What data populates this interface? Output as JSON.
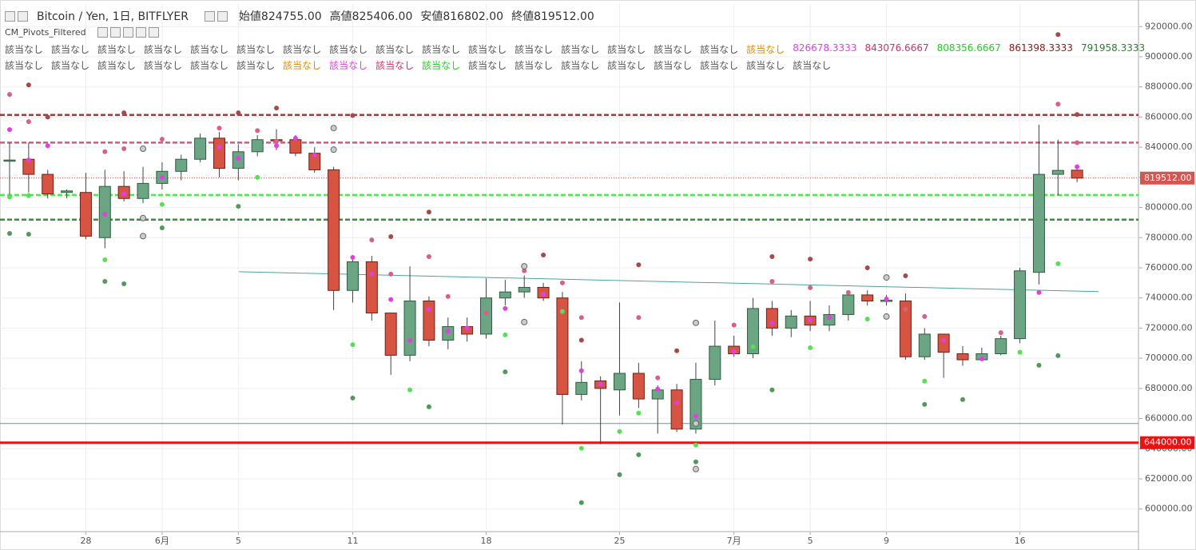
{
  "header": {
    "symbol": "Bitcoin / Yen, 1日, BITFLYER",
    "ohlc": [
      {
        "label": "始値",
        "value": "824755.00"
      },
      {
        "label": "高値",
        "value": "825406.00"
      },
      {
        "label": "安値",
        "value": "816802.00"
      },
      {
        "label": "終値",
        "value": "819512.00"
      }
    ]
  },
  "indicator": {
    "name": "CM_Pivots_Filtered"
  },
  "status": {
    "rows": [
      [
        {
          "text": "該当なし",
          "color": "#555555"
        },
        {
          "text": "該当なし",
          "color": "#555555"
        },
        {
          "text": "該当なし",
          "color": "#555555"
        },
        {
          "text": "該当なし",
          "color": "#555555"
        },
        {
          "text": "該当なし",
          "color": "#555555"
        },
        {
          "text": "該当なし",
          "color": "#555555"
        },
        {
          "text": "該当なし",
          "color": "#555555"
        },
        {
          "text": "該当なし",
          "color": "#555555"
        },
        {
          "text": "該当なし",
          "color": "#555555"
        },
        {
          "text": "該当なし",
          "color": "#555555"
        },
        {
          "text": "該当なし",
          "color": "#555555"
        },
        {
          "text": "該当なし",
          "color": "#555555"
        },
        {
          "text": "該当なし",
          "color": "#555555"
        },
        {
          "text": "該当なし",
          "color": "#555555"
        },
        {
          "text": "該当なし",
          "color": "#555555"
        },
        {
          "text": "該当なし",
          "color": "#555555"
        },
        {
          "text": "該当なし",
          "color": "#e08a00"
        },
        {
          "text": "826678.3333",
          "color": "#e040e0"
        },
        {
          "text": "843076.6667",
          "color": "#d0306a"
        },
        {
          "text": "808356.6667",
          "color": "#22cc22"
        },
        {
          "text": "861398.3333",
          "color": "#8b1a1a"
        },
        {
          "text": "791958.3333",
          "color": "#2e7d32"
        }
      ],
      [
        {
          "text": "該当なし",
          "color": "#555555"
        },
        {
          "text": "該当なし",
          "color": "#555555"
        },
        {
          "text": "該当なし",
          "color": "#555555"
        },
        {
          "text": "該当なし",
          "color": "#555555"
        },
        {
          "text": "該当なし",
          "color": "#555555"
        },
        {
          "text": "該当なし",
          "color": "#555555"
        },
        {
          "text": "該当なし",
          "color": "#e08a00"
        },
        {
          "text": "該当なし",
          "color": "#e040e0"
        },
        {
          "text": "該当なし",
          "color": "#d0306a"
        },
        {
          "text": "該当なし",
          "color": "#22cc22"
        },
        {
          "text": "該当なし",
          "color": "#555555"
        },
        {
          "text": "該当なし",
          "color": "#555555"
        },
        {
          "text": "該当なし",
          "color": "#555555"
        },
        {
          "text": "該当なし",
          "color": "#555555"
        },
        {
          "text": "該当なし",
          "color": "#555555"
        },
        {
          "text": "該当なし",
          "color": "#555555"
        },
        {
          "text": "該当なし",
          "color": "#555555"
        },
        {
          "text": "該当なし",
          "color": "#555555"
        }
      ]
    ]
  },
  "chart_data": {
    "type": "candlestick",
    "categories": [
      null,
      null,
      null,
      null,
      "28",
      null,
      null,
      null,
      "6月",
      null,
      null,
      null,
      "5",
      null,
      null,
      null,
      null,
      null,
      "11",
      null,
      null,
      null,
      null,
      null,
      null,
      "18",
      null,
      null,
      null,
      null,
      null,
      null,
      "25",
      null,
      null,
      null,
      null,
      null,
      "7月",
      null,
      null,
      null,
      "5",
      null,
      null,
      null,
      "9",
      null,
      null,
      null,
      null,
      null,
      null,
      "16",
      null,
      null,
      null
    ],
    "open": [
      831000,
      832000,
      822000,
      810000,
      810000,
      780000,
      814000,
      806000,
      816000,
      824000,
      832000,
      846000,
      826000,
      837000,
      845000,
      845000,
      836000,
      825000,
      745000,
      764000,
      730000,
      702000,
      738000,
      712000,
      721000,
      716000,
      740000,
      744000,
      747000,
      740000,
      676000,
      685000,
      679000,
      690000,
      673000,
      679000,
      653000,
      686000,
      708000,
      703000,
      733000,
      720000,
      728000,
      722000,
      729000,
      742000,
      738000,
      738000,
      701000,
      716000,
      703000,
      699000,
      703000,
      713000,
      757000,
      822000,
      824755
    ],
    "high": [
      843000,
      843000,
      825000,
      812000,
      823000,
      825000,
      824000,
      827000,
      830000,
      835000,
      849000,
      850000,
      842000,
      848000,
      852000,
      848000,
      840000,
      827000,
      768000,
      768000,
      730000,
      761000,
      741000,
      727000,
      727000,
      753000,
      752000,
      755000,
      750000,
      744000,
      698000,
      688000,
      737000,
      697000,
      682000,
      683000,
      697000,
      725000,
      715000,
      740000,
      738000,
      732000,
      738000,
      735000,
      745000,
      745000,
      742000,
      743000,
      720000,
      716000,
      708000,
      707000,
      715000,
      760000,
      855000,
      845000,
      825406
    ],
    "low": [
      808000,
      810000,
      806000,
      806000,
      779000,
      773000,
      804000,
      803000,
      812000,
      818000,
      830000,
      820000,
      818000,
      834000,
      838000,
      834000,
      823000,
      732000,
      737000,
      725000,
      689000,
      698000,
      708000,
      706000,
      711000,
      713000,
      735000,
      740000,
      738000,
      656000,
      672000,
      643000,
      662000,
      667000,
      650000,
      651000,
      650000,
      682000,
      701000,
      700000,
      715000,
      714000,
      718000,
      718000,
      725000,
      735000,
      735000,
      699000,
      699000,
      687000,
      695000,
      698000,
      702000,
      710000,
      749000,
      808000,
      816802
    ],
    "close": [
      831500,
      822000,
      809000,
      811000,
      781000,
      814000,
      806000,
      816000,
      824000,
      832000,
      846000,
      826000,
      837000,
      845000,
      844500,
      836000,
      825000,
      745000,
      764000,
      730000,
      702000,
      738000,
      712000,
      721000,
      716000,
      740000,
      744000,
      747000,
      740000,
      676000,
      684000,
      680000,
      690000,
      673000,
      679000,
      653000,
      686000,
      708000,
      703000,
      733000,
      720000,
      728000,
      722000,
      729000,
      742000,
      738000,
      738500,
      701000,
      716000,
      704000,
      699000,
      703000,
      713000,
      758000,
      822000,
      824600,
      819512
    ],
    "up_color": "#6ba583",
    "down_color": "#d75442",
    "ylim": [
      585000,
      935000
    ],
    "yticks": [
      {
        "value": 600000,
        "label": "600000.00"
      },
      {
        "value": 620000,
        "label": "620000.00"
      },
      {
        "value": 640000,
        "label": "640000.00"
      },
      {
        "value": 660000,
        "label": "660000.00"
      },
      {
        "value": 680000,
        "label": "680000.00"
      },
      {
        "value": 700000,
        "label": "700000.00"
      },
      {
        "value": 720000,
        "label": "720000.00"
      },
      {
        "value": 740000,
        "label": "740000.00"
      },
      {
        "value": 760000,
        "label": "760000.00"
      },
      {
        "value": 780000,
        "label": "780000.00"
      },
      {
        "value": 800000,
        "label": "800000.00"
      },
      {
        "value": 820000,
        "label": "820000.00"
      },
      {
        "value": 840000,
        "label": "840000.00"
      },
      {
        "value": 860000,
        "label": "860000.00"
      },
      {
        "value": 880000,
        "label": "880000.00"
      },
      {
        "value": 900000,
        "label": "900000.00"
      },
      {
        "value": 920000,
        "label": "920000.00"
      }
    ],
    "grid": true,
    "levels": [
      {
        "value": 861398.3333,
        "color": "#a33a3a"
      },
      {
        "value": 843076.6667,
        "color": "#d05a7a"
      },
      {
        "value": 808356.6667,
        "color": "#44ee44"
      },
      {
        "value": 791958.3333,
        "color": "#3a8f3a"
      },
      {
        "value": 656700,
        "color": "#4aa3a0"
      }
    ],
    "price_tags": [
      {
        "value": 819512,
        "label": "819512.00",
        "color": "#d9534f"
      },
      {
        "value": 644000,
        "label": "644000.00",
        "color": "#ee1111"
      }
    ],
    "trendline": {
      "x": [
        12.03,
        57.12
      ],
      "values": [
        757400,
        744200
      ],
      "color": "#4aa3a0"
    },
    "dots": [
      {
        "color": "#e040e0",
        "x": [
          0,
          1,
          2,
          5,
          6,
          8,
          11,
          12,
          14,
          15,
          16,
          18,
          19,
          20,
          21,
          22,
          23,
          24,
          26,
          28,
          30,
          31,
          34,
          35,
          36,
          38,
          40,
          42,
          43,
          46,
          49,
          51,
          54,
          56
        ],
        "values": [
          851700,
          831500,
          841000,
          795500,
          809000,
          820000,
          840000,
          832600,
          841000,
          846000,
          834700,
          766900,
          756000,
          739000,
          711800,
          732400,
          718000,
          720000,
          733000,
          742500,
          691700,
          683000,
          679500,
          670500,
          661500,
          704400,
          723400,
          725600,
          727000,
          739300,
          711800,
          699600,
          743600,
          827000
        ]
      },
      {
        "color": "#d95f86",
        "x": [
          0,
          1,
          5,
          6,
          8,
          11,
          13,
          14,
          19,
          20,
          22,
          23,
          25,
          27,
          29,
          30,
          33,
          34,
          38,
          40,
          42,
          44,
          47,
          48,
          52,
          55,
          56
        ],
        "values": [
          875000,
          857000,
          837000,
          839000,
          845300,
          852700,
          851000,
          844000,
          778500,
          755800,
          767400,
          741000,
          730000,
          758000,
          750000,
          727000,
          727000,
          687000,
          722000,
          751000,
          746800,
          743600,
          732400,
          727700,
          717000,
          868600,
          843000
        ]
      },
      {
        "color": "#a84848",
        "x": [
          1,
          2,
          6,
          12,
          14,
          18,
          20,
          22,
          28,
          30,
          33,
          35,
          40,
          42,
          45,
          47,
          55,
          56
        ],
        "values": [
          881300,
          860000,
          862800,
          862800,
          866000,
          861000,
          780700,
          797000,
          768500,
          712000,
          762000,
          705000,
          767400,
          765800,
          760000,
          754700,
          914700,
          861700
        ]
      },
      {
        "color": "#55e055",
        "x": [
          0,
          1,
          5,
          8,
          13,
          18,
          21,
          26,
          29,
          30,
          32,
          33,
          36,
          39,
          42,
          45,
          48,
          53,
          55
        ],
        "values": [
          807000,
          808000,
          765300,
          802000,
          820000,
          709000,
          679000,
          715500,
          731000,
          640300,
          651400,
          663600,
          642400,
          707600,
          707000,
          726000,
          684800,
          704000,
          762700
        ]
      },
      {
        "color": "#4f9a5a",
        "x": [
          0,
          1,
          5,
          6,
          8,
          12,
          18,
          22,
          26,
          30,
          32,
          33,
          36,
          40,
          48,
          50,
          54,
          55
        ],
        "values": [
          782800,
          782300,
          751000,
          749400,
          786500,
          800800,
          673600,
          667800,
          691000,
          604200,
          622800,
          636000,
          631300,
          679000,
          669400,
          672600,
          695400,
          701700
        ]
      },
      {
        "color": "#cccccc",
        "x": [
          7,
          7,
          7,
          17,
          17,
          27,
          27,
          36,
          36,
          36,
          46,
          46
        ],
        "values": [
          839000,
          793000,
          781000,
          852700,
          838400,
          761000,
          724000,
          723500,
          656700,
          626500,
          753600,
          727700
        ]
      }
    ]
  }
}
